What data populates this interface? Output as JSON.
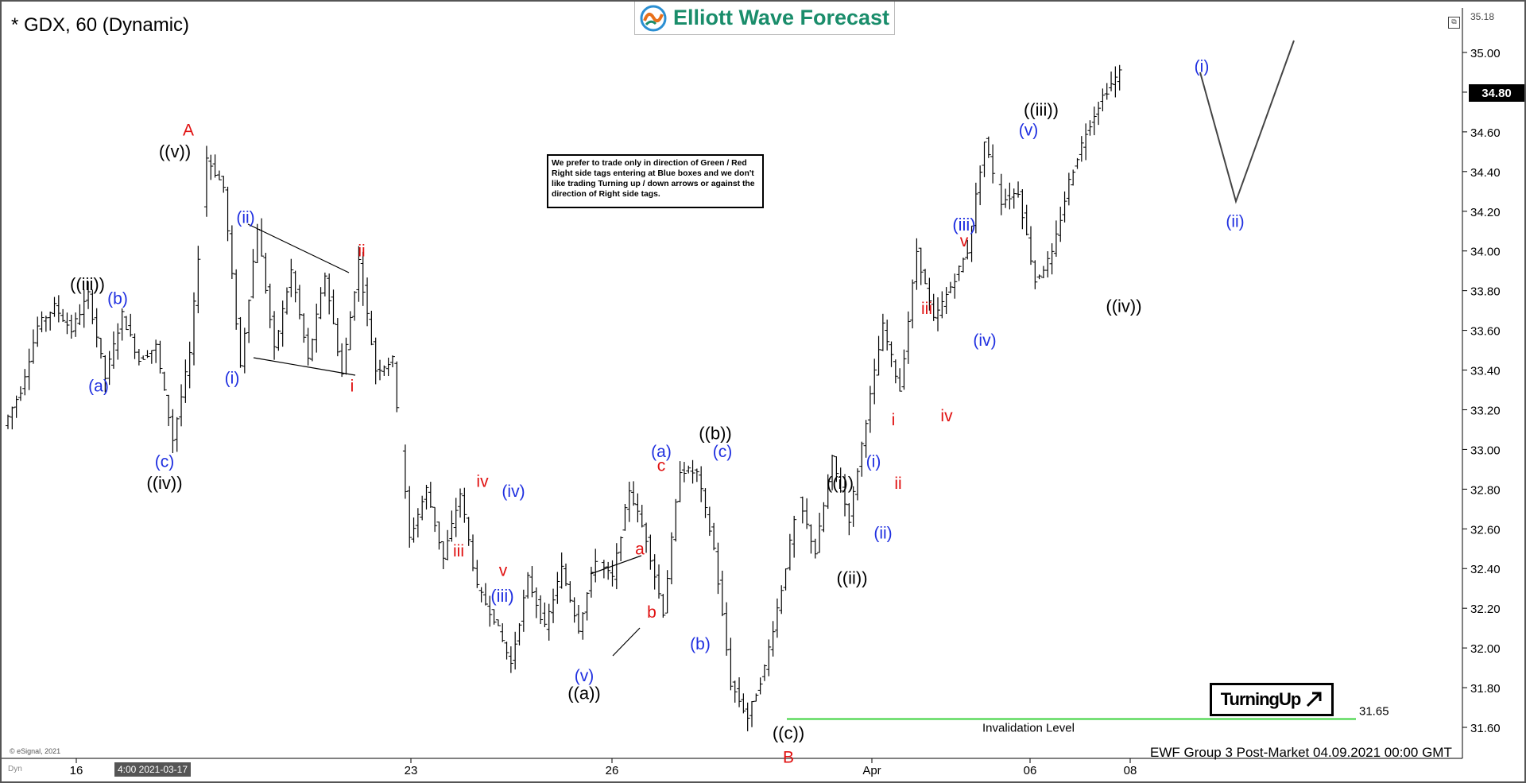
{
  "header": {
    "symbol_line": "* GDX, 60 (Dynamic)",
    "logo_text": "Elliott Wave Forecast",
    "top_right_value": "35.18"
  },
  "note_box": {
    "text": "We prefer to trade only in direction of Green / Red Right side tags entering at Blue boxes and we don't like trading Turning up / down arrows or against the direction of Right side tags."
  },
  "turning_up": {
    "label": "TurningUp",
    "icon": "up-right-arrow-icon"
  },
  "footer": {
    "text": "EWF Group 3 Post-Market 04.09.2021 00:00 GMT",
    "esignal": "© eSignal, 2021",
    "dyn": "Dyn",
    "cursor_datetime": "4:00 2021-03-17"
  },
  "colors": {
    "wave_blue": "#1f2fe0",
    "wave_red": "#e01010",
    "wave_black": "#000000",
    "invalidation_green": "#39d23a",
    "logo_green": "#1a8d6b"
  },
  "chart_data": {
    "type": "ohlc",
    "ylim": [
      31.55,
      35.2
    ],
    "y_ticks": [
      31.6,
      31.8,
      32.0,
      32.2,
      32.4,
      32.6,
      32.8,
      33.0,
      33.2,
      33.4,
      33.6,
      33.8,
      34.0,
      34.2,
      34.4,
      34.6,
      34.8,
      35.0
    ],
    "last_price": "34.80",
    "x_ticks": [
      "16",
      "23",
      "26",
      "Apr",
      "06",
      "08"
    ],
    "invalidation": {
      "level": 31.65,
      "label": "Invalidation Level",
      "value_label": "31.65"
    },
    "price_path": [
      33.12,
      33.3,
      33.62,
      33.72,
      33.6,
      33.78,
      33.36,
      33.68,
      33.45,
      33.52,
      33.05,
      33.48,
      34.47,
      34.32,
      33.42,
      34.12,
      33.5,
      33.9,
      33.45,
      33.88,
      33.38,
      33.95,
      33.4,
      33.45,
      32.55,
      32.8,
      32.45,
      32.78,
      32.3,
      32.15,
      31.92,
      32.35,
      32.1,
      32.4,
      32.1,
      32.45,
      32.35,
      32.8,
      32.55,
      32.18,
      32.9,
      32.88,
      32.5,
      31.82,
      31.65,
      31.9,
      32.3,
      32.75,
      32.48,
      32.95,
      32.65,
      33.15,
      33.62,
      33.3,
      34.0,
      33.65,
      33.82,
      34.0,
      34.55,
      34.25,
      34.3,
      33.85,
      33.98,
      34.35,
      34.6,
      34.78,
      34.9
    ],
    "projection": [
      [
        34.9,
        "start"
      ],
      [
        34.25,
        "(ii)"
      ],
      [
        35.06,
        "end"
      ]
    ],
    "wave_labels": [
      {
        "text": "A",
        "color": "red",
        "price": 34.61
      },
      {
        "text": "((v))",
        "color": "black",
        "price": 34.5
      },
      {
        "text": "((iii))",
        "color": "black",
        "price": 33.83
      },
      {
        "text": "(b)",
        "color": "blue",
        "price": 33.76
      },
      {
        "text": "(a)",
        "color": "blue",
        "price": 33.32
      },
      {
        "text": "(c)",
        "color": "blue",
        "price": 32.94
      },
      {
        "text": "((iv))",
        "color": "black",
        "price": 32.83
      },
      {
        "text": "(ii)",
        "color": "blue",
        "price": 34.17
      },
      {
        "text": "(i)",
        "color": "blue",
        "price": 33.36
      },
      {
        "text": "ii",
        "color": "red",
        "price": 34.0
      },
      {
        "text": "i",
        "color": "red",
        "price": 33.32
      },
      {
        "text": "iv",
        "color": "red",
        "price": 32.84
      },
      {
        "text": "(iv)",
        "color": "blue",
        "price": 32.79
      },
      {
        "text": "iii",
        "color": "red",
        "price": 32.49
      },
      {
        "text": "v",
        "color": "red",
        "price": 32.39
      },
      {
        "text": "(iii)",
        "color": "blue",
        "price": 32.26
      },
      {
        "text": "(a)",
        "color": "blue",
        "price": 32.99
      },
      {
        "text": "c",
        "color": "red",
        "price": 32.92
      },
      {
        "text": "((b))",
        "color": "black",
        "price": 33.08
      },
      {
        "text": "(c)",
        "color": "blue",
        "price": 32.99
      },
      {
        "text": "a",
        "color": "red",
        "price": 32.5
      },
      {
        "text": "b",
        "color": "red",
        "price": 32.18
      },
      {
        "text": "(b)",
        "color": "blue",
        "price": 32.02
      },
      {
        "text": "(v)",
        "color": "blue",
        "price": 31.86
      },
      {
        "text": "((a))",
        "color": "black",
        "price": 31.77
      },
      {
        "text": "((c))",
        "color": "black",
        "price": 31.57
      },
      {
        "text": "B",
        "color": "red",
        "price": 31.45
      },
      {
        "text": "((i))",
        "color": "black",
        "price": 32.83
      },
      {
        "text": "((ii))",
        "color": "black",
        "price": 32.35
      },
      {
        "text": "(i)",
        "color": "blue",
        "price": 32.94
      },
      {
        "text": "ii",
        "color": "red",
        "price": 32.83
      },
      {
        "text": "(ii)",
        "color": "blue",
        "price": 32.58
      },
      {
        "text": "i",
        "color": "red",
        "price": 33.15
      },
      {
        "text": "iii",
        "color": "red",
        "price": 33.71
      },
      {
        "text": "iv",
        "color": "red",
        "price": 33.17
      },
      {
        "text": "v",
        "color": "red",
        "price": 34.05
      },
      {
        "text": "(iii)",
        "color": "blue",
        "price": 34.13
      },
      {
        "text": "(iv)",
        "color": "blue",
        "price": 33.55
      },
      {
        "text": "((iii))",
        "color": "black",
        "price": 34.71
      },
      {
        "text": "(v)",
        "color": "blue",
        "price": 34.61
      },
      {
        "text": "((iv))",
        "color": "black",
        "price": 33.72
      },
      {
        "text": "(i)",
        "color": "blue",
        "price": 34.93
      },
      {
        "text": "(ii)",
        "color": "blue",
        "price": 34.15
      }
    ]
  }
}
